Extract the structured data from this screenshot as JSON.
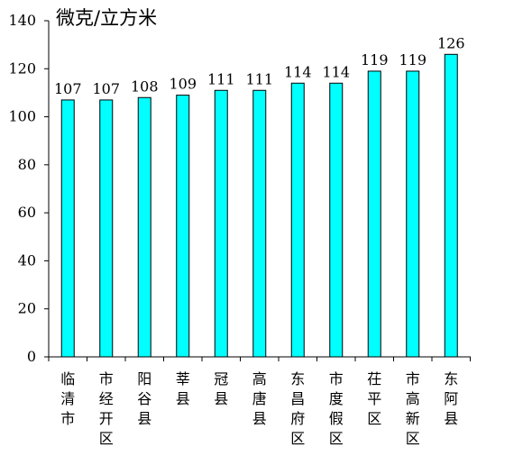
{
  "chart_data": {
    "type": "bar",
    "unit_label": "微克/立方米",
    "categories": [
      "临清市",
      "市经开区",
      "阳谷县",
      "莘县",
      "冠县",
      "高唐县",
      "东昌府区",
      "市度假区",
      "茌平区",
      "市高新区",
      "东阿县"
    ],
    "values": [
      107,
      107,
      108,
      109,
      111,
      111,
      114,
      114,
      119,
      119,
      126
    ],
    "data_labels": [
      "107",
      "107",
      "108",
      "109",
      "111",
      "111",
      "114",
      "114",
      "119",
      "119",
      "126"
    ],
    "ylim": [
      0,
      140
    ],
    "yticks": [
      "0",
      "20",
      "40",
      "60",
      "80",
      "100",
      "120",
      "140"
    ],
    "bar_color": "#00FFFF",
    "bar_edge_color": "#000000",
    "grid": false,
    "legend": false
  }
}
